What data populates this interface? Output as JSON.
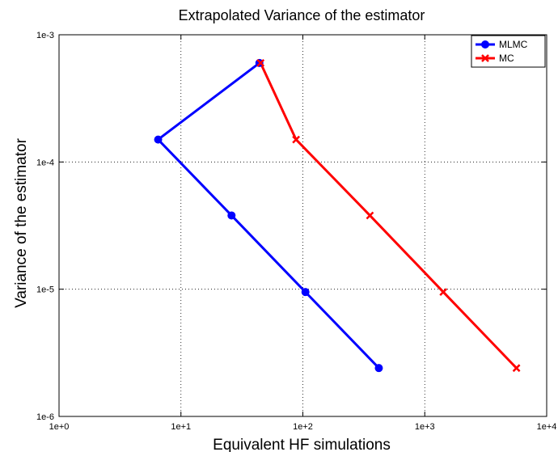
{
  "chart_data": {
    "type": "line",
    "title": "Extrapolated Variance of the estimator",
    "xlabel": "Equivalent HF simulations",
    "ylabel": "Variance of the estimator",
    "x_scale": "log",
    "y_scale": "log",
    "xlim": [
      1,
      10000
    ],
    "ylim": [
      1e-06,
      0.001
    ],
    "x_ticks": [
      1,
      10,
      100,
      1000,
      10000
    ],
    "x_tick_labels": [
      "1e+0",
      "1e+1",
      "1e+2",
      "1e+3",
      "1e+4"
    ],
    "y_ticks": [
      1e-06,
      1e-05,
      0.0001,
      0.001
    ],
    "y_tick_labels": [
      "1e-6",
      "1e-5",
      "1e-4",
      "1e-3"
    ],
    "grid": true,
    "legend_position": "top-right",
    "series": [
      {
        "name": "MLMC",
        "color": "#0000ff",
        "marker": "circle",
        "x": [
          44,
          6.5,
          26,
          105,
          420
        ],
        "y": [
          0.0006,
          0.00015,
          3.8e-05,
          9.5e-06,
          2.4e-06
        ]
      },
      {
        "name": "MC",
        "color": "#ff0000",
        "marker": "x",
        "x": [
          45,
          88,
          355,
          1420,
          5650
        ],
        "y": [
          0.0006,
          0.00015,
          3.8e-05,
          9.5e-06,
          2.4e-06
        ]
      }
    ]
  }
}
